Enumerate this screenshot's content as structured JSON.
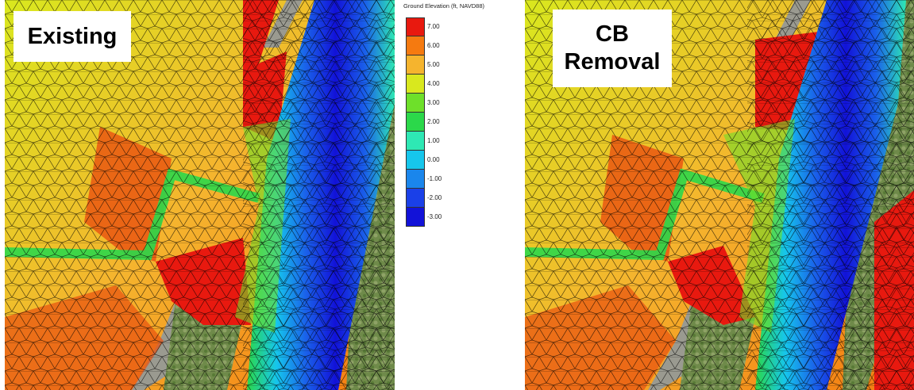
{
  "panels": {
    "left": {
      "label": "Existing"
    },
    "right": {
      "label_line1": "CB",
      "label_line2": "Removal"
    }
  },
  "legend": {
    "title": "Ground Elevation (ft, NAVD88)",
    "entries": [
      {
        "label": "7.00",
        "color": "#e8190f"
      },
      {
        "label": "6.00",
        "color": "#f57a10"
      },
      {
        "label": "5.00",
        "color": "#f5b42e"
      },
      {
        "label": "4.00",
        "color": "#d9e81e"
      },
      {
        "label": "3.00",
        "color": "#6ee02a"
      },
      {
        "label": "2.00",
        "color": "#2bd84a"
      },
      {
        "label": "1.00",
        "color": "#2ee8b4"
      },
      {
        "label": "0.00",
        "color": "#16c6ec"
      },
      {
        "label": "-1.00",
        "color": "#1a86ec"
      },
      {
        "label": "-2.00",
        "color": "#1a40e8"
      },
      {
        "label": "-3.00",
        "color": "#1212d8"
      }
    ]
  }
}
